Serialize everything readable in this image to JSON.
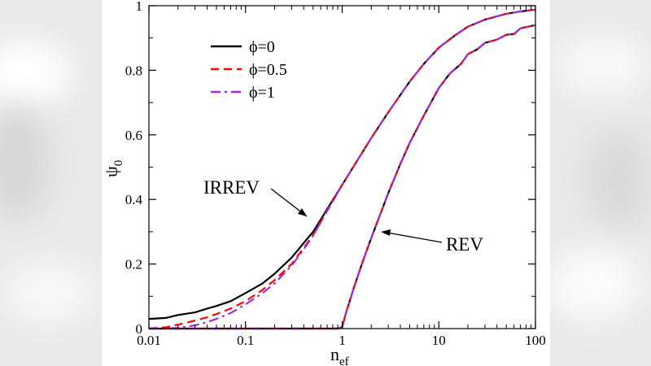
{
  "chart_data": {
    "type": "line",
    "title": "",
    "xlabel": "n",
    "xlabel_sub": "ef",
    "ylabel": "ψ",
    "ylabel_sub": "0",
    "xscale": "log",
    "xlim": [
      0.01,
      100
    ],
    "ylim": [
      0,
      1
    ],
    "grid": false,
    "x_ticks": [
      0.01,
      0.1,
      1,
      10,
      100
    ],
    "x_tick_labels": [
      "0.01",
      "0.1",
      "1",
      "10",
      "100"
    ],
    "y_ticks": [
      0,
      0.2,
      0.4,
      0.6,
      0.8,
      1
    ],
    "y_tick_labels": [
      "0",
      "0.2",
      "0.4",
      "0.6",
      "0.8",
      "1"
    ],
    "legend": {
      "position": "top-left",
      "entries": [
        {
          "label": "ϕ=0",
          "color": "#000000",
          "dash": "solid"
        },
        {
          "label": "ϕ=0.5",
          "color": "#ff0000",
          "dash": "dashed"
        },
        {
          "label": "ϕ=1",
          "color": "#9b30d9",
          "dash": "dash-dot"
        }
      ]
    },
    "annotations": [
      {
        "text": "IRREV",
        "points_to": [
          0.5,
          0.34
        ]
      },
      {
        "text": "REV",
        "points_to": [
          2.2,
          0.31
        ]
      }
    ],
    "series": [
      {
        "name": "ϕ=0",
        "group": "IRREV",
        "color": "#000000",
        "x": [
          0.01,
          0.015,
          0.02,
          0.03,
          0.04,
          0.05,
          0.07,
          0.1,
          0.15,
          0.2,
          0.3,
          0.4,
          0.5,
          0.7,
          1,
          1.5,
          2,
          3,
          5,
          7,
          10,
          15,
          20,
          30,
          50,
          70,
          100
        ],
        "y": [
          0.03,
          0.033,
          0.042,
          0.05,
          0.062,
          0.07,
          0.085,
          0.11,
          0.14,
          0.17,
          0.22,
          0.265,
          0.3,
          0.37,
          0.445,
          0.53,
          0.59,
          0.67,
          0.765,
          0.82,
          0.87,
          0.91,
          0.935,
          0.957,
          0.975,
          0.982,
          0.988
        ]
      },
      {
        "name": "ϕ=0.5",
        "group": "IRREV",
        "color": "#ff0000",
        "x": [
          0.01,
          0.015,
          0.02,
          0.03,
          0.04,
          0.05,
          0.07,
          0.1,
          0.15,
          0.2,
          0.3,
          0.4,
          0.5,
          0.7,
          1,
          1.5,
          2,
          3,
          5,
          7,
          10,
          15,
          20,
          30,
          50,
          70,
          100
        ],
        "y": [
          0,
          0.004,
          0.012,
          0.025,
          0.035,
          0.045,
          0.062,
          0.085,
          0.12,
          0.15,
          0.2,
          0.25,
          0.29,
          0.365,
          0.445,
          0.53,
          0.59,
          0.67,
          0.765,
          0.82,
          0.87,
          0.91,
          0.935,
          0.957,
          0.975,
          0.982,
          0.988
        ]
      },
      {
        "name": "ϕ=1",
        "group": "IRREV",
        "color": "#9b30d9",
        "x": [
          0.01,
          0.015,
          0.02,
          0.03,
          0.04,
          0.05,
          0.07,
          0.1,
          0.15,
          0.2,
          0.3,
          0.4,
          0.5,
          0.7,
          1,
          1.5,
          2,
          3,
          5,
          7,
          10,
          15,
          20,
          30,
          50,
          70,
          100
        ],
        "y": [
          0,
          0,
          0.002,
          0.01,
          0.02,
          0.03,
          0.048,
          0.075,
          0.11,
          0.14,
          0.195,
          0.245,
          0.288,
          0.364,
          0.445,
          0.53,
          0.59,
          0.67,
          0.765,
          0.82,
          0.87,
          0.91,
          0.935,
          0.957,
          0.975,
          0.982,
          0.988
        ]
      },
      {
        "name": "ϕ=0",
        "group": "REV",
        "color": "#000000",
        "x": [
          0.01,
          0.1,
          0.5,
          0.9,
          1.0,
          1.1,
          1.3,
          1.6,
          2,
          3,
          4,
          5,
          7,
          10,
          13,
          17,
          20,
          25,
          30,
          40,
          50,
          60,
          70,
          100
        ],
        "y": [
          0,
          0,
          0,
          0,
          0.005,
          0.05,
          0.12,
          0.2,
          0.28,
          0.42,
          0.51,
          0.575,
          0.66,
          0.745,
          0.79,
          0.82,
          0.85,
          0.865,
          0.885,
          0.895,
          0.91,
          0.912,
          0.93,
          0.94
        ]
      },
      {
        "name": "ϕ=0.5",
        "group": "REV",
        "color": "#ff0000",
        "x": [
          0.01,
          0.1,
          0.5,
          0.9,
          1.0,
          1.1,
          1.3,
          1.6,
          2,
          3,
          4,
          5,
          7,
          10,
          13,
          17,
          20,
          25,
          30,
          40,
          50,
          60,
          70,
          100
        ],
        "y": [
          0,
          0,
          0,
          0,
          0.005,
          0.05,
          0.12,
          0.2,
          0.28,
          0.42,
          0.51,
          0.575,
          0.66,
          0.745,
          0.79,
          0.82,
          0.85,
          0.865,
          0.885,
          0.895,
          0.91,
          0.912,
          0.93,
          0.94
        ]
      },
      {
        "name": "ϕ=1",
        "group": "REV",
        "color": "#9b30d9",
        "x": [
          0.01,
          0.1,
          0.5,
          0.9,
          1.0,
          1.1,
          1.3,
          1.6,
          2,
          3,
          4,
          5,
          7,
          10,
          13,
          17,
          20,
          25,
          30,
          40,
          50,
          60,
          70,
          100
        ],
        "y": [
          0,
          0,
          0,
          0,
          0.005,
          0.05,
          0.12,
          0.2,
          0.28,
          0.42,
          0.51,
          0.575,
          0.66,
          0.745,
          0.79,
          0.82,
          0.85,
          0.865,
          0.885,
          0.895,
          0.91,
          0.912,
          0.93,
          0.94
        ]
      }
    ]
  }
}
